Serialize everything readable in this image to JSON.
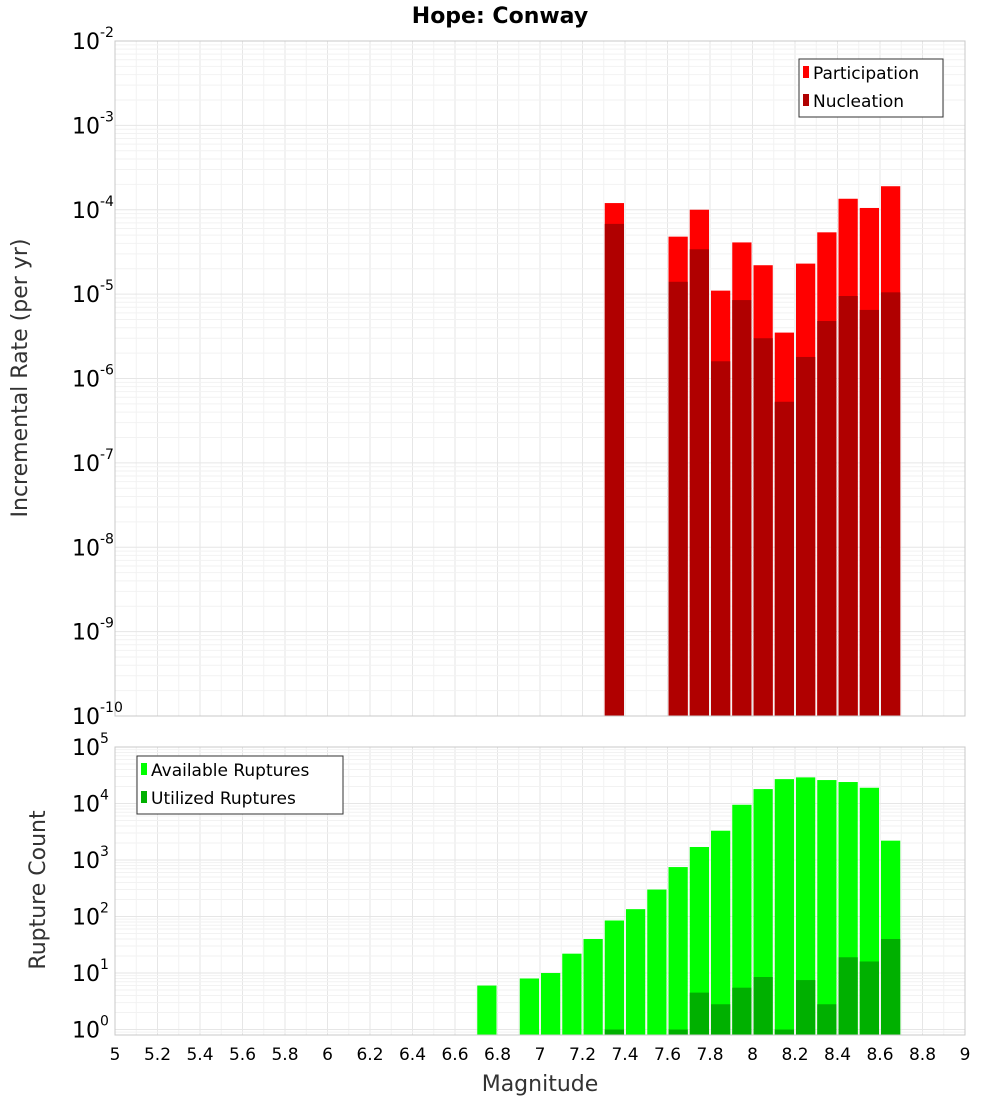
{
  "title": "Hope: Conway",
  "colors": {
    "participation": "#ff0000",
    "nucleation": "#b00000",
    "available": "#00ff00",
    "utilized": "#00b000",
    "grid_major": "#e6e6e6",
    "grid_minor": "#f2f2f2",
    "plot_border": "#c8c8c8"
  },
  "chart_data": [
    {
      "type": "bar",
      "name": "rate-panel",
      "ylabel": "Incremental Rate (per yr)",
      "xlabel": "",
      "yscale": "log",
      "ylim": [
        1e-10,
        0.01
      ],
      "xlim": [
        5,
        9
      ],
      "bar_width": 0.1,
      "legend": {
        "position": "top-right",
        "entries": [
          "Participation",
          "Nucleation"
        ]
      },
      "x": [
        7.35,
        7.65,
        7.75,
        7.85,
        7.95,
        8.05,
        8.15,
        8.25,
        8.35,
        8.45,
        8.55,
        8.65
      ],
      "series": [
        {
          "name": "Participation",
          "color_key": "participation",
          "values": [
            0.00012,
            4.8e-05,
            0.0001,
            1.1e-05,
            4.1e-05,
            2.2e-05,
            3.5e-06,
            2.3e-05,
            5.4e-05,
            0.000135,
            0.000105,
            0.00019
          ]
        },
        {
          "name": "Nucleation",
          "color_key": "nucleation",
          "values": [
            6.8e-05,
            1.4e-05,
            3.4e-05,
            1.6e-06,
            8.5e-06,
            3e-06,
            5.3e-07,
            1.8e-06,
            4.8e-06,
            9.5e-06,
            6.5e-06,
            1.05e-05
          ]
        }
      ]
    },
    {
      "type": "bar",
      "name": "count-panel",
      "ylabel": "Rupture Count",
      "xlabel": "Magnitude",
      "yscale": "log",
      "ylim": [
        0.8,
        100000
      ],
      "xlim": [
        5,
        9
      ],
      "bar_width": 0.1,
      "legend": {
        "position": "top-left",
        "entries": [
          "Available Ruptures",
          "Utilized Ruptures"
        ]
      },
      "x": [
        6.75,
        6.95,
        7.05,
        7.15,
        7.25,
        7.35,
        7.45,
        7.55,
        7.65,
        7.75,
        7.85,
        7.95,
        8.05,
        8.15,
        8.25,
        8.35,
        8.45,
        8.55,
        8.65
      ],
      "series": [
        {
          "name": "Available Ruptures",
          "color_key": "available",
          "values": [
            6,
            8,
            10,
            22,
            40,
            85,
            135,
            300,
            750,
            1700,
            3300,
            9500,
            18000,
            27000,
            29000,
            26000,
            24000,
            19000,
            2200
          ]
        },
        {
          "name": "Utilized Ruptures",
          "color_key": "utilized",
          "values": [
            null,
            null,
            null,
            null,
            null,
            1,
            null,
            null,
            1,
            4.5,
            2.8,
            5.5,
            8.5,
            1,
            7.5,
            2.8,
            19,
            16,
            40
          ]
        }
      ]
    }
  ],
  "axes": {
    "x_ticks": [
      "5",
      "5.2",
      "5.4",
      "5.6",
      "5.8",
      "6",
      "6.2",
      "6.4",
      "6.6",
      "6.8",
      "7",
      "7.2",
      "7.4",
      "7.6",
      "7.8",
      "8",
      "8.2",
      "8.4",
      "8.6",
      "8.8",
      "9"
    ],
    "rate_y_ticks": [
      {
        "base": "10",
        "exp": "-10"
      },
      {
        "base": "10",
        "exp": "-9"
      },
      {
        "base": "10",
        "exp": "-8"
      },
      {
        "base": "10",
        "exp": "-7"
      },
      {
        "base": "10",
        "exp": "-6"
      },
      {
        "base": "10",
        "exp": "-5"
      },
      {
        "base": "10",
        "exp": "-4"
      },
      {
        "base": "10",
        "exp": "-3"
      },
      {
        "base": "10",
        "exp": "-2"
      }
    ],
    "count_y_ticks": [
      {
        "base": "10",
        "exp": "0"
      },
      {
        "base": "10",
        "exp": "1"
      },
      {
        "base": "10",
        "exp": "2"
      },
      {
        "base": "10",
        "exp": "3"
      },
      {
        "base": "10",
        "exp": "4"
      },
      {
        "base": "10",
        "exp": "5"
      }
    ]
  }
}
